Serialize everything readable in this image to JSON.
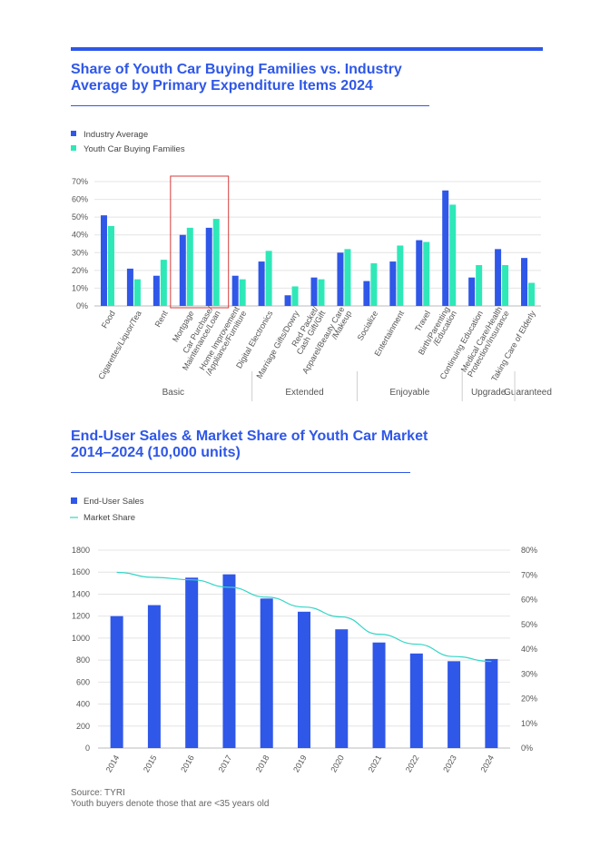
{
  "colors": {
    "accent": "#2f57e8",
    "teal": "#2ee8b8",
    "line": "#33d6c6",
    "highlight": "#d93b3b"
  },
  "page": {
    "title1": "Share of Youth Car Buying Families vs. Industry Average by Primary Expenditure Items 2024",
    "title2": "End-User Sales & Market Share of Youth Car Market 2014–2024 (10,000 units)",
    "source": "Source: TYRI",
    "note": "Youth buyers denote those that are <35 years old"
  },
  "chart_data": [
    {
      "type": "bar",
      "title": "Share of Youth Car Buying Families vs. Industry Average by Primary Expenditure Items 2024",
      "categories": [
        "Food",
        "Cigarettes/Liquor/Tea",
        "Rent",
        "Mortgage",
        "Car Purchase/\nMaintenance/Loan",
        "Home Improvement\n/Appliance/Furniture",
        "Digital Electronics",
        "Marriage Gifts/Dowry",
        "Red Packet/\nCash Gift/Gift",
        "Apparel/Beauty Care\n/Makeup",
        "Socialize",
        "Entertainment",
        "Travel",
        "Birth/Parenting\n/Education",
        "Continuing Education",
        "Medical Care/Health\nProtection/Insurance",
        "Taking Care of Elderly"
      ],
      "groups": [
        {
          "label": "Basic",
          "count": 6
        },
        {
          "label": "Extended",
          "count": 4
        },
        {
          "label": "Enjoyable",
          "count": 4
        },
        {
          "label": "Upgrade",
          "count": 2
        },
        {
          "label": "Guaranteed",
          "count": 1
        }
      ],
      "series": [
        {
          "name": "Industry Average",
          "values": [
            51,
            21,
            17,
            40,
            44,
            17,
            25,
            6,
            16,
            30,
            14,
            25,
            37,
            65,
            16,
            32,
            27
          ]
        },
        {
          "name": "Youth Car Buying Families",
          "values": [
            45,
            15,
            26,
            44,
            49,
            15,
            31,
            11,
            15,
            32,
            24,
            34,
            36,
            57,
            23,
            23,
            13
          ]
        }
      ],
      "ylim": [
        0,
        70
      ],
      "yticks": [
        "0%",
        "10%",
        "20%",
        "30%",
        "40%",
        "50%",
        "60%",
        "70%"
      ],
      "highlighted_categories": [
        "Mortgage",
        "Car Purchase/\nMaintenance/Loan"
      ],
      "legend": "top-left",
      "grid": true
    },
    {
      "type": "bar",
      "title": "End-User Sales & Market Share of Youth Car Market 2014–2024 (10,000 units)",
      "categories": [
        "2014",
        "2015",
        "2016",
        "2017",
        "2018",
        "2019",
        "2020",
        "2021",
        "2022",
        "2023",
        "2024"
      ],
      "series": [
        {
          "name": "End-User Sales",
          "type": "bar",
          "axis": "left",
          "values": [
            1200,
            1300,
            1550,
            1580,
            1360,
            1240,
            1080,
            960,
            860,
            790,
            810
          ]
        },
        {
          "name": "Market Share",
          "type": "line",
          "axis": "right",
          "values": [
            71,
            69,
            68,
            65,
            61,
            57,
            53,
            46,
            42,
            37,
            35
          ]
        }
      ],
      "ylim_left": [
        0,
        1800
      ],
      "yticks_left": [
        "0",
        "200",
        "400",
        "600",
        "800",
        "1000",
        "1200",
        "1400",
        "1600",
        "1800"
      ],
      "ylim_right": [
        0,
        80
      ],
      "yticks_right": [
        "0%",
        "10%",
        "20%",
        "30%",
        "40%",
        "50%",
        "60%",
        "70%",
        "80%"
      ],
      "legend": "top-left",
      "grid": true
    }
  ]
}
